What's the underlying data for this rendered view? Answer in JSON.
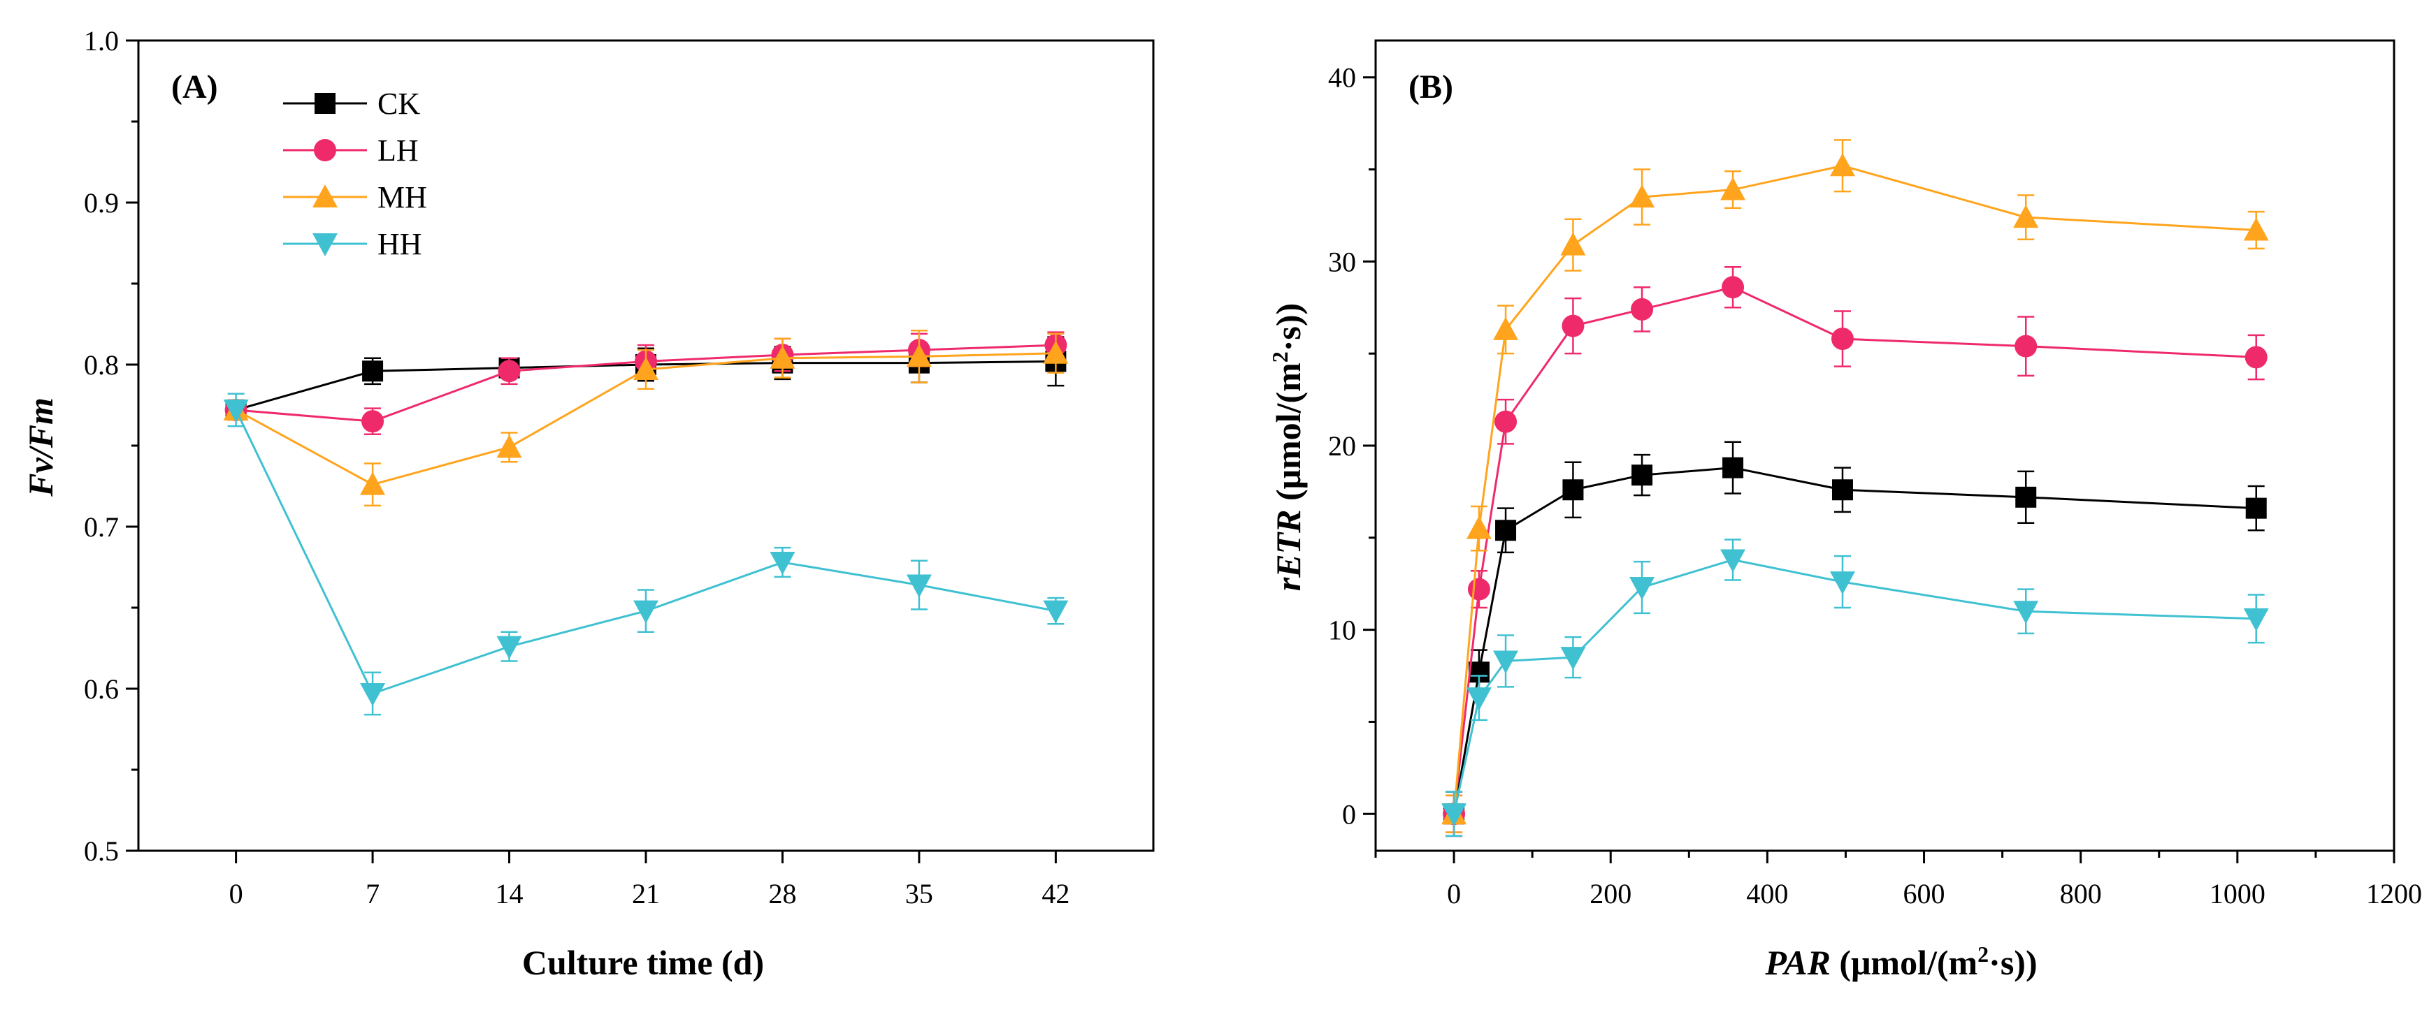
{
  "colors": {
    "CK": "#000000",
    "LH": "#ef2a6b",
    "MH": "#ffa41c",
    "HH": "#3fc1d2"
  },
  "chart_data": [
    {
      "panel": "A",
      "panel_label": "(A)",
      "type": "line",
      "title": "",
      "xlabel": "Culture time (d)",
      "ylabel": "Fv/Fm",
      "x": [
        0,
        7,
        14,
        21,
        28,
        35,
        42
      ],
      "xlim": [
        -5,
        47
      ],
      "ylim": [
        0.5,
        1.0
      ],
      "x_ticks": [
        0,
        7,
        14,
        21,
        28,
        35,
        42
      ],
      "y_ticks": [
        0.5,
        0.6,
        0.7,
        0.8,
        0.9,
        1.0
      ],
      "x_tick_labels": [
        "0",
        "7",
        "14",
        "21",
        "28",
        "35",
        "42"
      ],
      "y_tick_labels": [
        "0.5",
        "0.6",
        "0.7",
        "0.8",
        "0.9",
        "1.0"
      ],
      "legend_position": "top-left",
      "series": [
        {
          "name": "CK",
          "marker": "square",
          "values": [
            0.772,
            0.796,
            0.798,
            0.8,
            0.801,
            0.801,
            0.802
          ],
          "errors": [
            0.006,
            0.008,
            0.006,
            0.01,
            0.01,
            0.012,
            0.015
          ]
        },
        {
          "name": "LH",
          "marker": "circle",
          "values": [
            0.772,
            0.765,
            0.796,
            0.802,
            0.806,
            0.809,
            0.812
          ],
          "errors": [
            0.006,
            0.008,
            0.008,
            0.01,
            0.01,
            0.01,
            0.008
          ]
        },
        {
          "name": "MH",
          "marker": "triangle-up",
          "values": [
            0.772,
            0.726,
            0.749,
            0.797,
            0.804,
            0.805,
            0.807
          ],
          "errors": [
            0.006,
            0.013,
            0.009,
            0.012,
            0.012,
            0.016,
            0.012
          ]
        },
        {
          "name": "HH",
          "marker": "triangle-down",
          "values": [
            0.772,
            0.597,
            0.626,
            0.648,
            0.678,
            0.664,
            0.648
          ],
          "errors": [
            0.01,
            0.013,
            0.009,
            0.013,
            0.009,
            0.015,
            0.008
          ]
        }
      ]
    },
    {
      "panel": "B",
      "panel_label": "(B)",
      "type": "line",
      "title": "",
      "xlabel_italic": "PAR",
      "xlabel_rest": " (μmol/(m",
      "xlabel_sup": "2",
      "xlabel_end": "·s))",
      "ylabel_italic": "rETR",
      "ylabel_rest": " (μmol/(m",
      "ylabel_sup": "2",
      "ylabel_end": "·s))",
      "x": [
        0,
        32,
        66,
        152,
        240,
        356,
        496,
        730,
        1024
      ],
      "xlim": [
        -100,
        1200
      ],
      "ylim": [
        -2,
        42
      ],
      "x_ticks": [
        0,
        200,
        400,
        600,
        800,
        1000,
        1200
      ],
      "y_ticks": [
        0,
        10,
        20,
        30,
        40
      ],
      "x_tick_labels": [
        "0",
        "200",
        "400",
        "600",
        "800",
        "1000",
        "1200"
      ],
      "y_tick_labels": [
        "0",
        "10",
        "20",
        "30",
        "40"
      ],
      "series": [
        {
          "name": "CK",
          "marker": "square",
          "values": [
            0,
            7.7,
            15.4,
            17.6,
            18.4,
            18.8,
            17.6,
            17.2,
            16.6
          ],
          "errors": [
            1.2,
            1.2,
            1.2,
            1.5,
            1.1,
            1.4,
            1.2,
            1.4,
            1.2
          ]
        },
        {
          "name": "LH",
          "marker": "circle",
          "values": [
            0,
            12.2,
            21.3,
            26.5,
            27.4,
            28.6,
            25.8,
            25.4,
            24.8
          ],
          "errors": [
            1.0,
            1.0,
            1.2,
            1.5,
            1.2,
            1.1,
            1.5,
            1.6,
            1.2
          ]
        },
        {
          "name": "MH",
          "marker": "triangle-up",
          "values": [
            0,
            15.5,
            26.3,
            30.9,
            33.5,
            33.9,
            35.2,
            32.4,
            31.7
          ],
          "errors": [
            1.0,
            1.2,
            1.3,
            1.4,
            1.5,
            1.0,
            1.4,
            1.2,
            1.0
          ]
        },
        {
          "name": "HH",
          "marker": "triangle-down",
          "values": [
            0,
            6.3,
            8.3,
            8.5,
            12.3,
            13.8,
            12.6,
            11.0,
            10.6
          ],
          "errors": [
            1.2,
            1.2,
            1.4,
            1.1,
            1.4,
            1.1,
            1.4,
            1.2,
            1.3
          ]
        }
      ]
    }
  ]
}
